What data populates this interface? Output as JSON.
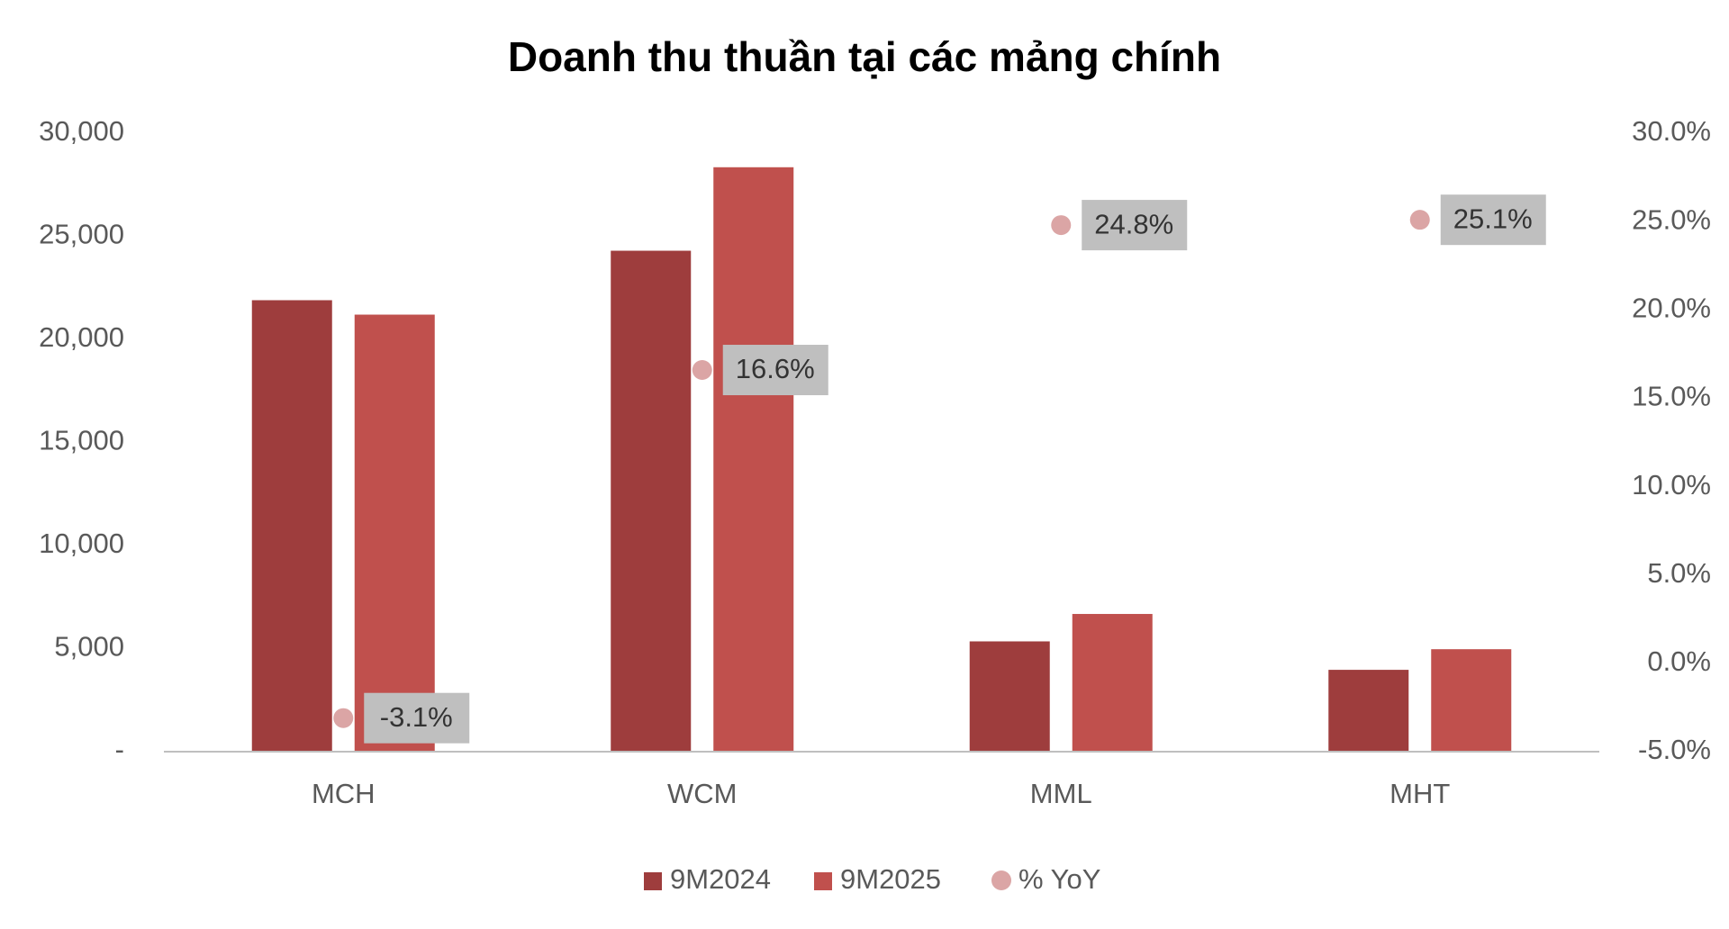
{
  "chart_data": {
    "type": "bar",
    "title": "Doanh thu thuần tại các mảng chính",
    "categories": [
      "MCH",
      "WCM",
      "MML",
      "MHT"
    ],
    "series": [
      {
        "name": "9M2024",
        "color": "#9e3d3d",
        "values": [
          21900,
          24300,
          5350,
          3970
        ]
      },
      {
        "name": "9M2025",
        "color": "#c0504d",
        "values": [
          21200,
          28350,
          6680,
          4970
        ]
      },
      {
        "name": "% YoY",
        "color": "#dba5a5",
        "axis": "y2",
        "type": "scatter",
        "values": [
          -3.1,
          16.6,
          24.8,
          25.1
        ],
        "value_labels": [
          "-3.1%",
          "16.6%",
          "24.8%",
          "25.1%"
        ]
      }
    ],
    "ylim": [
      0,
      30000
    ],
    "yticks": [
      {
        "value": 0,
        "label": "-"
      },
      {
        "value": 5000,
        "label": "5,000"
      },
      {
        "value": 10000,
        "label": "10,000"
      },
      {
        "value": 15000,
        "label": "15,000"
      },
      {
        "value": 20000,
        "label": "20,000"
      },
      {
        "value": 25000,
        "label": "25,000"
      },
      {
        "value": 30000,
        "label": "30,000"
      }
    ],
    "y2lim": [
      -5,
      30
    ],
    "y2ticks": [
      {
        "value": -5,
        "label": "-5.0%"
      },
      {
        "value": 0,
        "label": "0.0%"
      },
      {
        "value": 5,
        "label": "5.0%"
      },
      {
        "value": 10,
        "label": "10.0%"
      },
      {
        "value": 15,
        "label": "15.0%"
      },
      {
        "value": 20,
        "label": "20.0%"
      },
      {
        "value": 25,
        "label": "25.0%"
      },
      {
        "value": 30,
        "label": "30.0%"
      }
    ],
    "grid": false,
    "legend": "bottom"
  }
}
